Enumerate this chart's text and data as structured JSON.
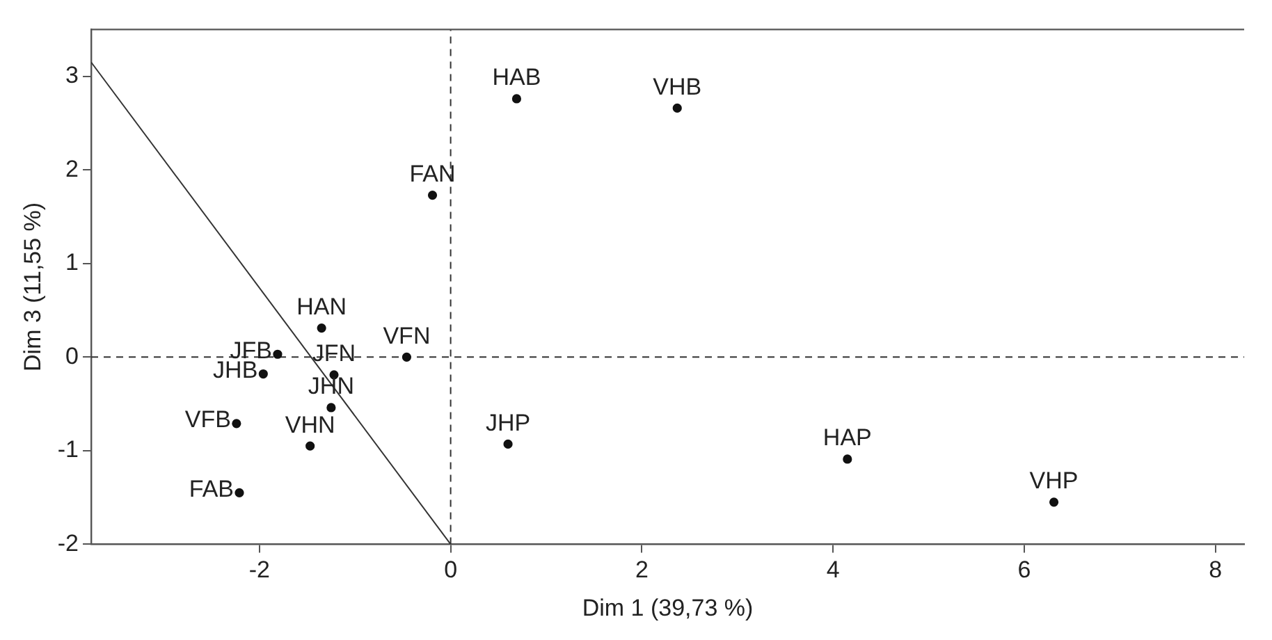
{
  "chart_data": {
    "type": "scatter",
    "xlabel": "Dim 1 (39,73 %)",
    "ylabel": "Dim 3 (11,55 %)",
    "xlim": [
      -3.76,
      8.3
    ],
    "xticks": [
      -2,
      0,
      2,
      4,
      6,
      8
    ],
    "ylim": [
      -2,
      3.5
    ],
    "yticks": [
      -2,
      -1,
      0,
      1,
      2,
      3
    ],
    "grid": false,
    "legend": false,
    "marker": "circle",
    "series": [
      {
        "color": "#111111",
        "x": [
          0.69,
          2.37,
          -0.19,
          4.15,
          6.31,
          0.6,
          -1.35,
          -1.81,
          -1.96,
          -0.46,
          -1.22,
          -1.25,
          -2.24,
          -1.47,
          -2.21
        ],
        "values": [
          2.76,
          2.66,
          1.73,
          -1.09,
          -1.55,
          -0.93,
          0.31,
          0.03,
          -0.18,
          0,
          -0.19,
          -0.54,
          -0.71,
          -0.95,
          -1.45
        ]
      },
      {
        "type": "line",
        "color": "#333333",
        "marker": "none",
        "x": [
          -3.76,
          0
        ],
        "values": [
          3.15,
          -2
        ]
      },
      {
        "type": "line",
        "color": "#333333",
        "marker": "none",
        "line_style": "dashed",
        "x": [
          0,
          0
        ],
        "values": [
          -2,
          3.5
        ]
      },
      {
        "type": "line",
        "color": "#333333",
        "marker": "none",
        "line_style": "dashed",
        "x": [
          -3.76,
          8.3
        ],
        "values": [
          0,
          0
        ]
      }
    ],
    "annotations": [
      {
        "text": "HAB",
        "x": 0.69,
        "y": 2.76
      },
      {
        "text": "VHB",
        "x": 2.37,
        "y": 2.66
      },
      {
        "text": "FAN",
        "x": -0.19,
        "y": 1.73
      },
      {
        "text": "HAP",
        "x": 4.15,
        "y": -1.09
      },
      {
        "text": "VHP",
        "x": 6.31,
        "y": -1.55
      },
      {
        "text": "JHP",
        "x": 0.6,
        "y": -0.93
      },
      {
        "text": "HAN",
        "x": -1.35,
        "y": 0.31
      },
      {
        "text": "JFB",
        "x": -1.81,
        "y": 0.03
      },
      {
        "text": "JHB",
        "x": -1.96,
        "y": -0.18
      },
      {
        "text": "VFN",
        "x": -0.46,
        "y": 0
      },
      {
        "text": "JFN",
        "x": -1.22,
        "y": -0.19
      },
      {
        "text": "JHN",
        "x": -1.25,
        "y": -0.54
      },
      {
        "text": "VFB",
        "x": -2.24,
        "y": -0.71
      },
      {
        "text": "VHN",
        "x": -1.47,
        "y": -0.95
      },
      {
        "text": "FAB",
        "x": -2.21,
        "y": -1.45
      }
    ]
  }
}
